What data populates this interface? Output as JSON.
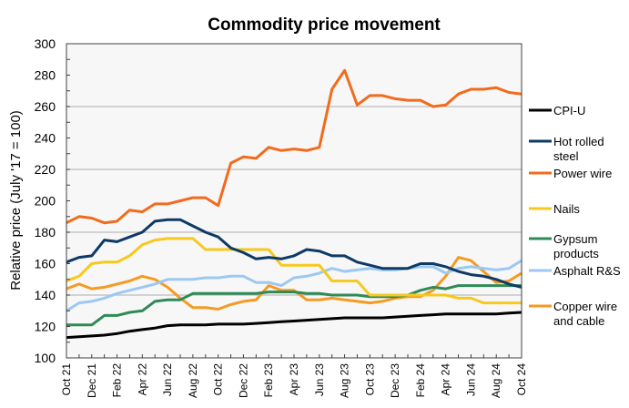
{
  "chart_data": {
    "type": "line",
    "title": "Commodity price movement",
    "xlabel": "",
    "ylabel": "Relative price (July '17 = 100)",
    "ylim": [
      100,
      300
    ],
    "yticks": [
      100,
      120,
      140,
      160,
      180,
      200,
      220,
      240,
      260,
      280,
      300
    ],
    "y_minor_step": 10,
    "gridlines_y": [
      140,
      180,
      220,
      260
    ],
    "grid": true,
    "legend_position": "right",
    "x": [
      "Oct 21",
      "Nov 21",
      "Dec 21",
      "Jan 22",
      "Feb 22",
      "Mar 22",
      "Apr 22",
      "May 22",
      "Jun 22",
      "Jul 22",
      "Aug 22",
      "Sep 22",
      "Oct 22",
      "Nov 22",
      "Dec 22",
      "Jan 23",
      "Feb 23",
      "Mar 23",
      "Apr 23",
      "May 23",
      "Jun 23",
      "Jul 23",
      "Aug 23",
      "Sep 23",
      "Oct 23",
      "Nov 23",
      "Dec 23",
      "Jan 24",
      "Feb 24",
      "Mar 24",
      "Apr 24",
      "May 24",
      "Jun 24",
      "Jul 24",
      "Aug 24",
      "Sep 24",
      "Oct 24"
    ],
    "xtick_labels": [
      "Oct 21",
      "Dec 21",
      "Feb 22",
      "Apr 22",
      "Jun 22",
      "Aug 22",
      "Oct 22",
      "Dec 22",
      "Feb 23",
      "Apr 23",
      "Jun 23",
      "Aug 23",
      "Oct 23",
      "Dec 23",
      "Feb 24",
      "Apr 24",
      "Jun 24",
      "Aug 24",
      "Oct 24"
    ],
    "series": [
      {
        "name": "CPI-U",
        "color": "#000000",
        "values": [
          113,
          113.5,
          114,
          114.5,
          115.5,
          117,
          118,
          119,
          120.5,
          121,
          121,
          121,
          121.5,
          121.5,
          121.5,
          122,
          122.5,
          123,
          123.5,
          124,
          124.5,
          125,
          125.5,
          125.5,
          125.5,
          125.5,
          126,
          126.5,
          127,
          127.5,
          128,
          128,
          128,
          128,
          128,
          128.5,
          129
        ]
      },
      {
        "name": "Hot rolled steel",
        "color": "#0e3a66",
        "values": [
          161,
          164,
          165,
          175,
          174,
          177,
          180,
          187,
          188,
          188,
          184,
          180,
          177,
          170,
          167,
          163,
          164,
          163,
          165,
          169,
          168,
          165,
          165,
          161,
          159,
          157,
          157,
          157,
          160,
          160,
          158,
          155,
          153,
          152,
          150,
          147,
          145
        ]
      },
      {
        "name": "Power wire",
        "color": "#f26b1d",
        "values": [
          186,
          190,
          189,
          186,
          187,
          194,
          193,
          198,
          198,
          200,
          202,
          202,
          197,
          224,
          228,
          227,
          234,
          232,
          233,
          232,
          234,
          271,
          283,
          261,
          267,
          267,
          265,
          264,
          264,
          260,
          261,
          268,
          271,
          271,
          272,
          269,
          268
        ]
      },
      {
        "name": "Nails",
        "color": "#f7c81e",
        "values": [
          149,
          152,
          160,
          161,
          161,
          165,
          172,
          175,
          176,
          176,
          176,
          169,
          169,
          169,
          169,
          169,
          169,
          159,
          159,
          159,
          159,
          149,
          149,
          149,
          140,
          140,
          140,
          140,
          140,
          140,
          140,
          138,
          138,
          135,
          135,
          135,
          135
        ]
      },
      {
        "name": "Gypsum products",
        "color": "#2e8b57",
        "values": [
          121,
          121,
          121,
          127,
          127,
          129,
          130,
          136,
          137,
          137,
          141,
          141,
          141,
          141,
          141,
          141,
          142,
          142,
          142,
          141,
          141,
          140,
          140,
          140,
          139,
          139,
          139,
          140,
          143,
          145,
          144,
          146,
          146,
          146,
          146,
          146,
          146
        ]
      },
      {
        "name": "Asphalt R&S",
        "color": "#9cc8f2",
        "values": [
          130,
          135,
          136,
          138,
          141,
          143,
          145,
          147,
          150,
          150,
          150,
          151,
          151,
          152,
          152,
          148,
          148,
          146,
          151,
          152,
          154,
          157,
          155,
          156,
          157,
          156,
          156,
          157,
          158,
          158,
          154,
          157,
          158,
          157,
          156,
          157,
          162
        ]
      },
      {
        "name": "Copper wire and cable",
        "color": "#f59a23",
        "values": [
          144,
          147,
          144,
          145,
          147,
          149,
          152,
          150,
          145,
          138,
          132,
          132,
          131,
          134,
          136,
          137,
          146,
          143,
          143,
          137,
          137,
          138,
          137,
          136,
          135,
          136,
          138,
          139,
          139,
          143,
          152,
          164,
          162,
          155,
          148,
          149,
          154
        ]
      }
    ]
  },
  "legend": [
    {
      "line1": "CPI-U",
      "line2": ""
    },
    {
      "line1": "Hot rolled",
      "line2": "steel"
    },
    {
      "line1": "Power wire",
      "line2": ""
    },
    {
      "line1": "Nails",
      "line2": ""
    },
    {
      "line1": "Gypsum",
      "line2": "products"
    },
    {
      "line1": "Asphalt R&S",
      "line2": ""
    },
    {
      "line1": "Copper wire",
      "line2": "and cable"
    }
  ]
}
